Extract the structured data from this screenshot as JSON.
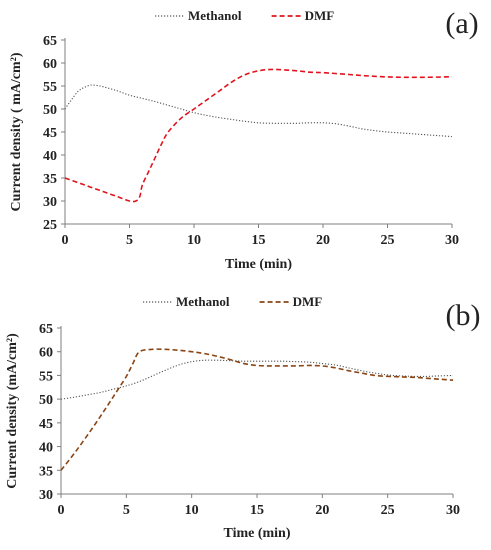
{
  "chart_data": [
    {
      "type": "line",
      "panel_label": "(a)",
      "xlabel": "Time (min)",
      "ylabel": "Current density ( mA/cm²)",
      "xlim": [
        0,
        30
      ],
      "ylim": [
        25,
        65
      ],
      "xticks": [
        "0",
        "5",
        "10",
        "15",
        "20",
        "25",
        "30"
      ],
      "yticks": [
        "25",
        "30",
        "35",
        "40",
        "45",
        "50",
        "55",
        "60",
        "65"
      ],
      "legend_position": "top-left",
      "series": [
        {
          "name": "Methanol",
          "color": "#555555",
          "style": "dotted",
          "x": [
            0,
            0.5,
            1,
            1.5,
            2,
            2.5,
            3,
            4,
            5,
            6,
            7,
            8,
            9,
            10,
            11,
            12,
            13,
            14,
            15,
            16,
            17,
            18,
            19,
            20,
            21,
            22,
            23,
            24,
            25,
            26,
            27,
            28,
            29,
            30
          ],
          "y": [
            50,
            52,
            53.8,
            54.7,
            55.2,
            55.1,
            54.8,
            54,
            53,
            52.3,
            51.6,
            50.8,
            50,
            49.2,
            48.6,
            48.1,
            47.7,
            47.3,
            47,
            46.9,
            46.9,
            46.9,
            47,
            47,
            46.8,
            46.3,
            45.7,
            45.3,
            45,
            44.8,
            44.6,
            44.4,
            44.2,
            44
          ]
        },
        {
          "name": "DMF",
          "color": "#e0141e",
          "style": "dashed",
          "x": [
            0,
            1,
            2,
            3,
            4,
            5,
            5.5,
            5.8,
            6,
            6.5,
            7,
            7.5,
            8,
            9,
            10,
            11,
            12,
            13,
            14,
            15,
            16,
            17,
            18,
            19,
            20,
            22,
            24,
            26,
            28,
            30
          ],
          "y": [
            35,
            34,
            33,
            32,
            31,
            30,
            30,
            31,
            33.5,
            36.5,
            39.5,
            42.5,
            45,
            48,
            50,
            52,
            54,
            56,
            57.5,
            58.3,
            58.6,
            58.5,
            58.3,
            58,
            57.9,
            57.5,
            57.1,
            56.9,
            56.9,
            57
          ]
        }
      ]
    },
    {
      "type": "line",
      "panel_label": "(b)",
      "xlabel": "Time (min)",
      "ylabel": "Current  density (mA/cm²)",
      "xlim": [
        0,
        30
      ],
      "ylim": [
        30,
        65
      ],
      "xticks": [
        "0",
        "5",
        "10",
        "15",
        "20",
        "25",
        "30"
      ],
      "yticks": [
        "30",
        "35",
        "40",
        "45",
        "50",
        "55",
        "60",
        "65"
      ],
      "legend_position": "top-left",
      "series": [
        {
          "name": "Methanol",
          "color": "#555555",
          "style": "dotted",
          "x": [
            0,
            1,
            2,
            3,
            4,
            5,
            6,
            7,
            8,
            9,
            10,
            11,
            12,
            13,
            14,
            15,
            16,
            17,
            18,
            19,
            20,
            21,
            22,
            23,
            24,
            25,
            26,
            27,
            28,
            29,
            30
          ],
          "y": [
            50,
            50.4,
            50.9,
            51.4,
            52.1,
            52.8,
            53.7,
            54.9,
            56.1,
            57.2,
            57.9,
            58.2,
            58.2,
            58.1,
            58,
            58,
            58,
            58,
            57.9,
            57.8,
            57.5,
            57.2,
            56.6,
            56,
            55.5,
            55.1,
            54.9,
            54.8,
            54.8,
            54.9,
            55
          ]
        },
        {
          "name": "DMF",
          "color": "#8b4513",
          "style": "dashed",
          "x": [
            0,
            1,
            2,
            3,
            4,
            5,
            5.5,
            6,
            7,
            8,
            9,
            10,
            11,
            12,
            13,
            14,
            15,
            16,
            17,
            18,
            19,
            20,
            21,
            22,
            23,
            24,
            25,
            26,
            27,
            28,
            29,
            30
          ],
          "y": [
            35,
            38.5,
            42.3,
            46.3,
            50.5,
            54.8,
            57.5,
            60,
            60.5,
            60.5,
            60.3,
            60,
            59.6,
            59,
            58.3,
            57.5,
            57.1,
            57,
            57,
            57,
            57.1,
            57,
            56.6,
            56,
            55.5,
            55,
            54.8,
            54.7,
            54.6,
            54.4,
            54.2,
            54
          ]
        }
      ]
    }
  ]
}
